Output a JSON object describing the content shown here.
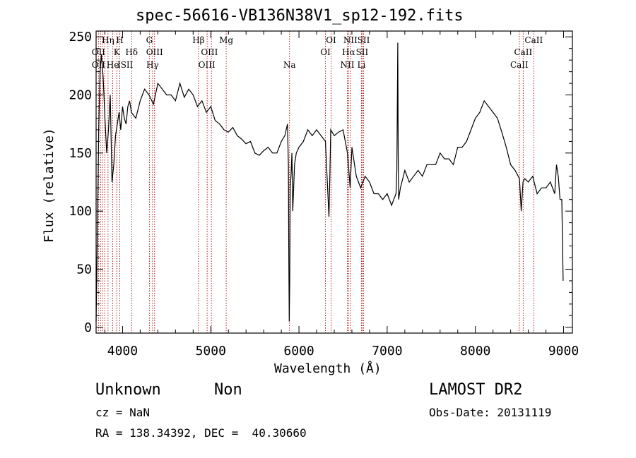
{
  "chart_data": {
    "type": "line",
    "title": "spec-56616-VB136N38V1_sp12-192.fits",
    "xlabel": "Wavelength (Å)",
    "ylabel": "Flux (relative)",
    "xlim": [
      3700,
      9100
    ],
    "ylim": [
      -5,
      255
    ],
    "xticks": [
      4000,
      5000,
      6000,
      7000,
      8000,
      9000
    ],
    "yticks": [
      0,
      50,
      100,
      150,
      200,
      250
    ],
    "grid": false,
    "series": [
      {
        "x": [
          3700,
          3715,
          3730,
          3745,
          3760,
          3780,
          3800,
          3820,
          3840,
          3860,
          3880,
          3900,
          3920,
          3940,
          3960,
          3980,
          4000,
          4020,
          4040,
          4060,
          4080,
          4100,
          4150,
          4200,
          4250,
          4300,
          4350,
          4400,
          4450,
          4500,
          4550,
          4600,
          4650,
          4700,
          4750,
          4800,
          4850,
          4900,
          4950,
          5000,
          5050,
          5100,
          5150,
          5200,
          5250,
          5300,
          5350,
          5400,
          5450,
          5500,
          5550,
          5600,
          5650,
          5700,
          5750,
          5800,
          5840,
          5870,
          5880,
          5885,
          5890,
          5895,
          5900,
          5910,
          5920,
          5930,
          5950,
          5970,
          6000,
          6050,
          6100,
          6150,
          6200,
          6250,
          6300,
          6340,
          6350,
          6360,
          6400,
          6450,
          6500,
          6550,
          6580,
          6600,
          6650,
          6700,
          6750,
          6800,
          6850,
          6900,
          6950,
          7000,
          7050,
          7100,
          7110,
          7120,
          7125,
          7130,
          7150,
          7200,
          7250,
          7300,
          7350,
          7400,
          7450,
          7500,
          7550,
          7600,
          7650,
          7700,
          7750,
          7800,
          7850,
          7900,
          7950,
          8000,
          8050,
          8100,
          8150,
          8200,
          8250,
          8300,
          8350,
          8400,
          8450,
          8500,
          8520,
          8540,
          8560,
          8600,
          8650,
          8700,
          8750,
          8800,
          8850,
          8900,
          8920,
          8940,
          8960,
          8980,
          8995
        ],
        "y": [
          5,
          85,
          170,
          220,
          235,
          215,
          180,
          150,
          170,
          200,
          125,
          140,
          165,
          175,
          185,
          170,
          190,
          180,
          175,
          190,
          195,
          185,
          180,
          195,
          205,
          200,
          192,
          210,
          205,
          200,
          200,
          195,
          210,
          198,
          205,
          200,
          190,
          195,
          185,
          190,
          178,
          175,
          170,
          168,
          172,
          165,
          162,
          158,
          160,
          150,
          148,
          152,
          155,
          150,
          150,
          160,
          165,
          175,
          140,
          60,
          5,
          40,
          120,
          130,
          150,
          100,
          140,
          150,
          155,
          160,
          170,
          165,
          170,
          165,
          160,
          95,
          130,
          170,
          165,
          168,
          170,
          150,
          120,
          155,
          130,
          120,
          130,
          125,
          115,
          115,
          110,
          115,
          105,
          115,
          135,
          245,
          150,
          110,
          120,
          135,
          125,
          130,
          135,
          130,
          140,
          140,
          140,
          150,
          145,
          145,
          140,
          155,
          155,
          160,
          170,
          180,
          185,
          195,
          190,
          185,
          180,
          168,
          155,
          140,
          135,
          128,
          100,
          125,
          128,
          125,
          130,
          115,
          120,
          120,
          125,
          115,
          140,
          130,
          110,
          110,
          40
        ]
      }
    ],
    "annotations": [
      {
        "label": "OII",
        "x": 3727,
        "row": 3
      },
      {
        "label": "OII",
        "x": 3727,
        "row": 2
      },
      {
        "label": "Hη",
        "x": 3835,
        "row": 1
      },
      {
        "label": "He",
        "x": 3889,
        "row": 3
      },
      {
        "label": "K",
        "x": 3934,
        "row": 2
      },
      {
        "label": "H",
        "x": 3968,
        "row": 1
      },
      {
        "label": "ISII",
        "x": 4030,
        "row": 3
      },
      {
        "label": "Hδ",
        "x": 4102,
        "row": 2
      },
      {
        "label": "G",
        "x": 4304,
        "row": 1
      },
      {
        "label": "OIII",
        "x": 4363,
        "row": 2
      },
      {
        "label": "Hγ",
        "x": 4340,
        "row": 3
      },
      {
        "label": "Hβ",
        "x": 4861,
        "row": 1
      },
      {
        "label": "OIII",
        "x": 4985,
        "row": 2
      },
      {
        "label": "OIII",
        "x": 4955,
        "row": 3
      },
      {
        "label": "Mg",
        "x": 5175,
        "row": 1
      },
      {
        "label": "Na",
        "x": 5893,
        "row": 3
      },
      {
        "label": "OI",
        "x": 6364,
        "row": 1
      },
      {
        "label": "OI",
        "x": 6300,
        "row": 2
      },
      {
        "label": "NII",
        "x": 6583,
        "row": 1
      },
      {
        "label": "Hα",
        "x": 6563,
        "row": 2
      },
      {
        "label": "NII",
        "x": 6548,
        "row": 3
      },
      {
        "label": "SII",
        "x": 6733,
        "row": 1
      },
      {
        "label": "SII",
        "x": 6716,
        "row": 2
      },
      {
        "label": "Li",
        "x": 6708,
        "row": 3
      },
      {
        "label": "CaII",
        "x": 8662,
        "row": 1
      },
      {
        "label": "CaII",
        "x": 8542,
        "row": 2
      },
      {
        "label": "CaII",
        "x": 8498,
        "row": 3
      }
    ],
    "line_markers_x": [
      3727,
      3750,
      3771,
      3798,
      3835,
      3889,
      3934,
      3968,
      4102,
      4304,
      4340,
      4363,
      4861,
      4959,
      5007,
      5175,
      5893,
      6300,
      6364,
      6548,
      6563,
      6583,
      6708,
      6716,
      6733,
      8498,
      8542,
      8662
    ]
  },
  "info": {
    "object_class": "Unknown",
    "subclass": "Non",
    "redshift_line": "cz = NaN",
    "coords_line": "RA = 138.34392, DEC =  40.30660",
    "survey": "LAMOST DR2",
    "obs_date": "Obs-Date: 20131119"
  }
}
